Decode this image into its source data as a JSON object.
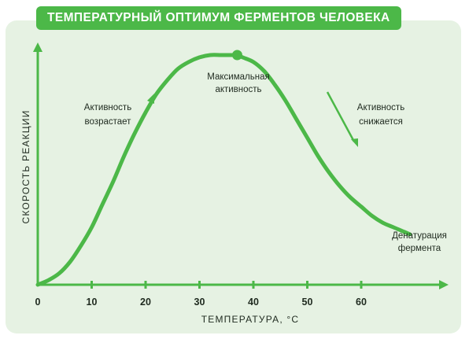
{
  "colors": {
    "accent": "#4cb848",
    "panel": "#e6f2e3",
    "text": "#1f2a1f"
  },
  "chart_data": {
    "type": "line",
    "title": "ТЕМПЕРАТУРНЫЙ ОПТИМУМ ФЕРМЕНТОВ ЧЕЛОВЕКА",
    "xlabel": "ТЕМПЕРАТУРА, °С",
    "ylabel": "СКОРОСТЬ РЕАКЦИИ",
    "xlim": [
      0,
      75
    ],
    "ylim": [
      0,
      1
    ],
    "grid": false,
    "x_ticks": [
      0,
      10,
      20,
      30,
      40,
      50,
      60
    ],
    "series": [
      {
        "x": [
          0,
          2,
          4,
          6,
          8,
          10,
          12,
          14,
          16,
          18,
          20,
          22,
          24,
          26,
          28,
          30,
          32,
          34,
          36,
          37,
          38,
          40,
          42,
          44,
          46,
          48,
          50,
          52,
          54,
          56,
          58,
          60,
          62,
          64,
          66,
          68,
          69
        ],
        "values": [
          0.0,
          0.02,
          0.05,
          0.1,
          0.17,
          0.25,
          0.35,
          0.45,
          0.56,
          0.66,
          0.75,
          0.83,
          0.89,
          0.94,
          0.97,
          0.99,
          1.0,
          1.0,
          1.0,
          1.0,
          0.99,
          0.97,
          0.93,
          0.87,
          0.8,
          0.72,
          0.64,
          0.56,
          0.49,
          0.43,
          0.38,
          0.34,
          0.3,
          0.27,
          0.25,
          0.23,
          0.22
        ]
      }
    ],
    "peak": {
      "x": 37,
      "y": 1.0
    },
    "annotations": {
      "rising": [
        "Активность",
        "возрастает"
      ],
      "peak": [
        "Максимальная",
        "активность"
      ],
      "falling": [
        "Активность",
        "снижается"
      ],
      "denaturation": [
        "Денатурация",
        "фермента"
      ]
    }
  }
}
